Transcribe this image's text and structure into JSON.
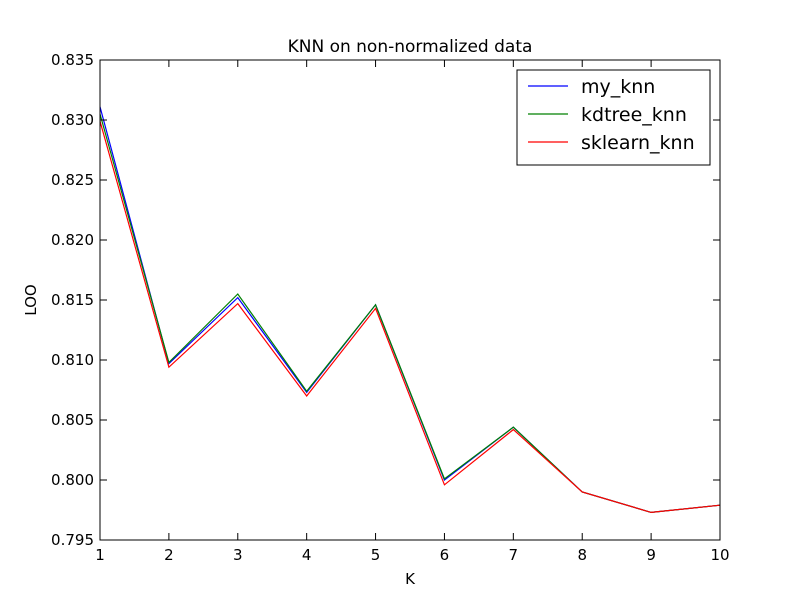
{
  "chart_data": {
    "type": "line",
    "title": "KNN on non-normalized data",
    "xlabel": "K",
    "ylabel": "LOO",
    "xlim": [
      1,
      10
    ],
    "ylim": [
      0.795,
      0.835
    ],
    "x": [
      1,
      2,
      3,
      4,
      5,
      6,
      7,
      8,
      9,
      10
    ],
    "xtick_labels": [
      "1",
      "2",
      "3",
      "4",
      "5",
      "6",
      "7",
      "8",
      "9",
      "10"
    ],
    "ytick_values": [
      0.795,
      0.8,
      0.805,
      0.81,
      0.815,
      0.82,
      0.825,
      0.83,
      0.835
    ],
    "ytick_labels": [
      "0.795",
      "0.800",
      "0.805",
      "0.810",
      "0.815",
      "0.820",
      "0.825",
      "0.830",
      "0.835"
    ],
    "grid": false,
    "legend_position": "top-right",
    "series": [
      {
        "name": "my_knn",
        "color": "#0000ff",
        "values": [
          0.8311,
          0.8097,
          0.8152,
          0.8073,
          0.8146,
          0.8,
          0.8044,
          0.799,
          0.7973,
          0.7979
        ]
      },
      {
        "name": "kdtree_knn",
        "color": "#008000",
        "values": [
          0.8305,
          0.8098,
          0.8155,
          0.8074,
          0.8146,
          0.8001,
          0.8044,
          0.799,
          0.7973,
          0.7979
        ]
      },
      {
        "name": "sklearn_knn",
        "color": "#ff0000",
        "values": [
          0.8299,
          0.8094,
          0.8147,
          0.807,
          0.8143,
          0.7996,
          0.8042,
          0.799,
          0.7973,
          0.7979
        ]
      }
    ]
  }
}
